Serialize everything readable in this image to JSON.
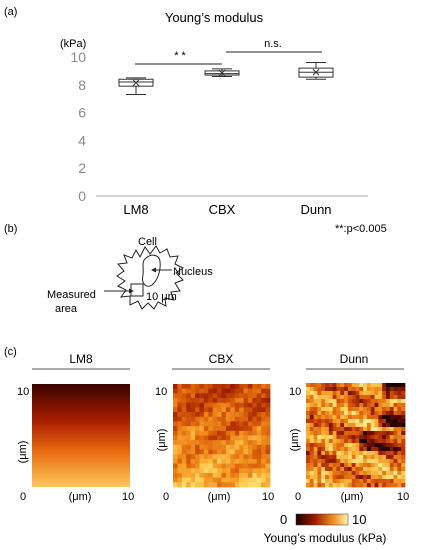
{
  "panel_labels": {
    "a": "(a)",
    "b": "(b)",
    "c": "(c)"
  },
  "chart_data": {
    "type": "box",
    "title": "Young’s modulus",
    "ylabel": "(kPa)",
    "ylim": [
      0,
      10
    ],
    "yticks": [
      "0",
      "2",
      "4",
      "6",
      "8",
      "10"
    ],
    "categories": [
      "LM8",
      "CBX",
      "Dunn"
    ],
    "boxes": [
      {
        "name": "LM8",
        "min": 7.3,
        "q1": 7.9,
        "median": 8.2,
        "q3": 8.4,
        "max": 8.5,
        "mean": 8.15
      },
      {
        "name": "CBX",
        "min": 8.6,
        "q1": 8.7,
        "median": 8.8,
        "q3": 9.0,
        "max": 9.15,
        "mean": 8.85
      },
      {
        "name": "Dunn",
        "min": 8.4,
        "q1": 8.55,
        "median": 8.9,
        "q3": 9.2,
        "max": 9.6,
        "mean": 8.9
      }
    ],
    "significance": [
      {
        "pair": [
          "LM8",
          "CBX"
        ],
        "label": "* *"
      },
      {
        "pair": [
          "CBX",
          "Dunn"
        ],
        "label": "n.s."
      }
    ],
    "footnote": "**:p<0.005"
  },
  "diagram": {
    "cell_label": "Cell",
    "nucleus_label": "Nucleus",
    "area_label_line1": "Measured",
    "area_label_line2": "area",
    "scale_label": "10 μm"
  },
  "maps": {
    "panels": [
      "LM8",
      "CBX",
      "Dunn"
    ],
    "tick_top": "10",
    "tick_origin": "0",
    "tick_right": "10",
    "axis_unit": "(μm)",
    "colorbar_min": "0",
    "colorbar_max": "10",
    "colorbar_label": "Young’s modulus (kPa)"
  },
  "colors": {
    "box_edge": "#333333",
    "axis": "#999999",
    "heat_dark": "#2b0000",
    "heat_mid": "#c24a00",
    "heat_light": "#ffe27a"
  }
}
